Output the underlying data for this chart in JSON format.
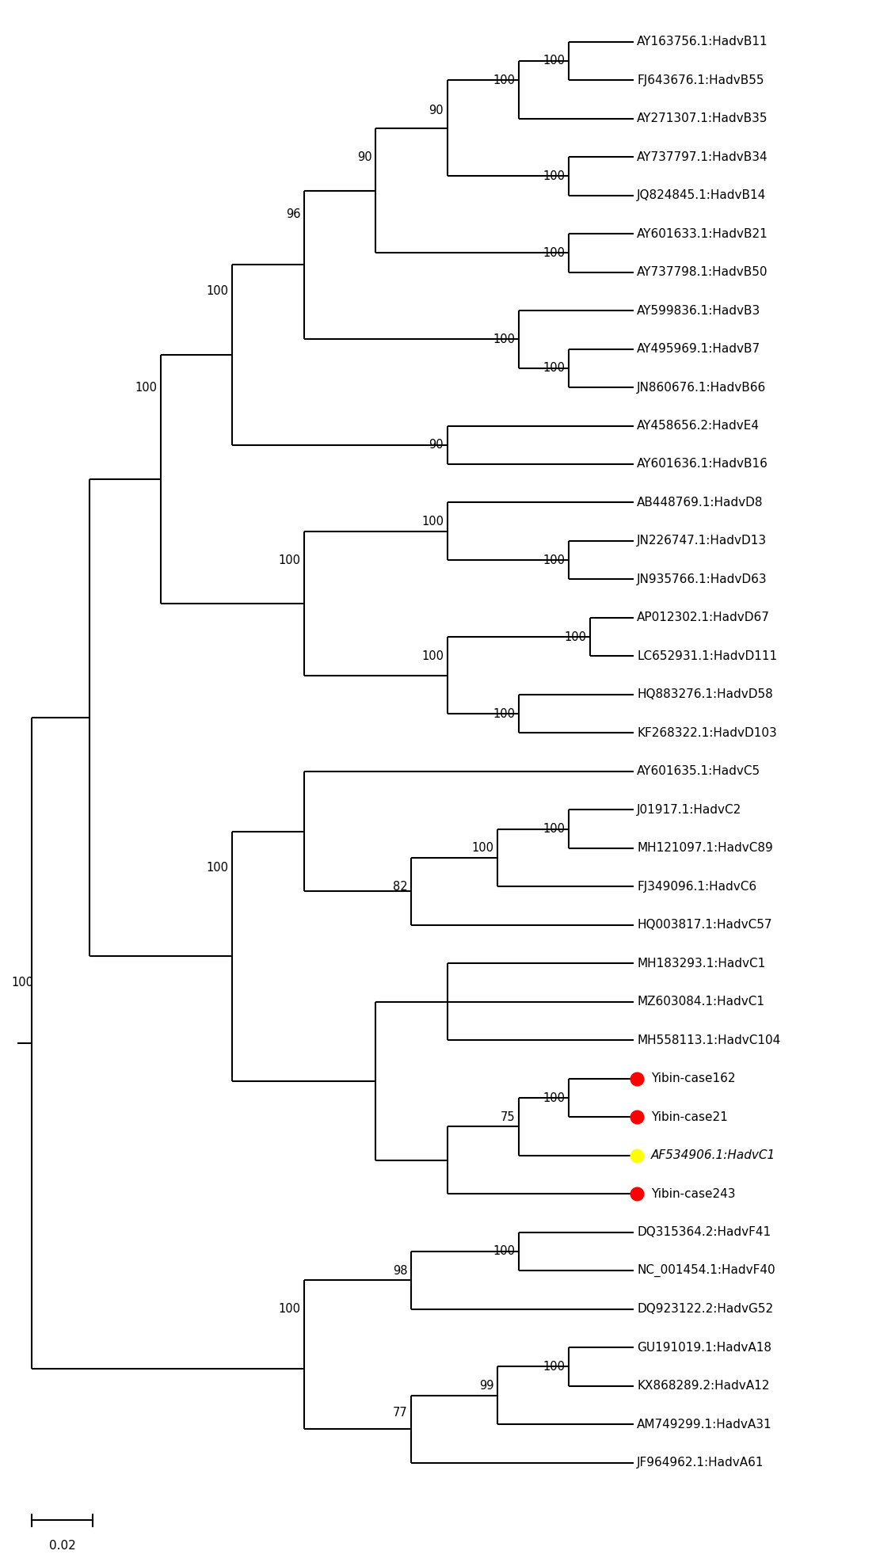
{
  "background": "#ffffff",
  "taxa": [
    {
      "name": "AY163756.1:HadvB11",
      "y": 1,
      "marker": null
    },
    {
      "name": "FJ643676.1:HadvB55",
      "y": 2,
      "marker": null
    },
    {
      "name": "AY271307.1:HadvB35",
      "y": 3,
      "marker": null
    },
    {
      "name": "AY737797.1:HadvB34",
      "y": 4,
      "marker": null
    },
    {
      "name": "JQ824845.1:HadvB14",
      "y": 5,
      "marker": null
    },
    {
      "name": "AY601633.1:HadvB21",
      "y": 6,
      "marker": null
    },
    {
      "name": "AY737798.1:HadvB50",
      "y": 7,
      "marker": null
    },
    {
      "name": "AY599836.1:HadvB3",
      "y": 8,
      "marker": null
    },
    {
      "name": "AY495969.1:HadvB7",
      "y": 9,
      "marker": null
    },
    {
      "name": "JN860676.1:HadvB66",
      "y": 10,
      "marker": null
    },
    {
      "name": "AY458656.2:HadvE4",
      "y": 11,
      "marker": null
    },
    {
      "name": "AY601636.1:HadvB16",
      "y": 12,
      "marker": null
    },
    {
      "name": "AB448769.1:HadvD8",
      "y": 13,
      "marker": null
    },
    {
      "name": "JN226747.1:HadvD13",
      "y": 14,
      "marker": null
    },
    {
      "name": "JN935766.1:HadvD63",
      "y": 15,
      "marker": null
    },
    {
      "name": "AP012302.1:HadvD67",
      "y": 16,
      "marker": null
    },
    {
      "name": "LC652931.1:HadvD111",
      "y": 17,
      "marker": null
    },
    {
      "name": "HQ883276.1:HadvD58",
      "y": 18,
      "marker": null
    },
    {
      "name": "KF268322.1:HadvD103",
      "y": 19,
      "marker": null
    },
    {
      "name": "AY601635.1:HadvC5",
      "y": 20,
      "marker": null
    },
    {
      "name": "J01917.1:HadvC2",
      "y": 21,
      "marker": null
    },
    {
      "name": "MH121097.1:HadvC89",
      "y": 22,
      "marker": null
    },
    {
      "name": "FJ349096.1:HadvC6",
      "y": 23,
      "marker": null
    },
    {
      "name": "HQ003817.1:HadvC57",
      "y": 24,
      "marker": null
    },
    {
      "name": "MH183293.1:HadvC1",
      "y": 25,
      "marker": null
    },
    {
      "name": "MZ603084.1:HadvC1",
      "y": 26,
      "marker": null
    },
    {
      "name": "MH558113.1:HadvC104",
      "y": 27,
      "marker": null
    },
    {
      "name": "Yibin-case162",
      "y": 28,
      "marker": "red"
    },
    {
      "name": "Yibin-case21",
      "y": 29,
      "marker": "red"
    },
    {
      "name": "AF534906.1:HadvC1",
      "y": 30,
      "marker": "yellow"
    },
    {
      "name": "Yibin-case243",
      "y": 31,
      "marker": "red"
    },
    {
      "name": "DQ315364.2:HadvF41",
      "y": 32,
      "marker": null
    },
    {
      "name": "NC_001454.1:HadvF40",
      "y": 33,
      "marker": null
    },
    {
      "name": "DQ923122.2:HadvG52",
      "y": 34,
      "marker": null
    },
    {
      "name": "GU191019.1:HadvA18",
      "y": 35,
      "marker": null
    },
    {
      "name": "KX868289.2:HadvA12",
      "y": 36,
      "marker": null
    },
    {
      "name": "AM749299.1:HadvA31",
      "y": 37,
      "marker": null
    },
    {
      "name": "JF964962.1:HadvA61",
      "y": 38,
      "marker": null
    }
  ]
}
